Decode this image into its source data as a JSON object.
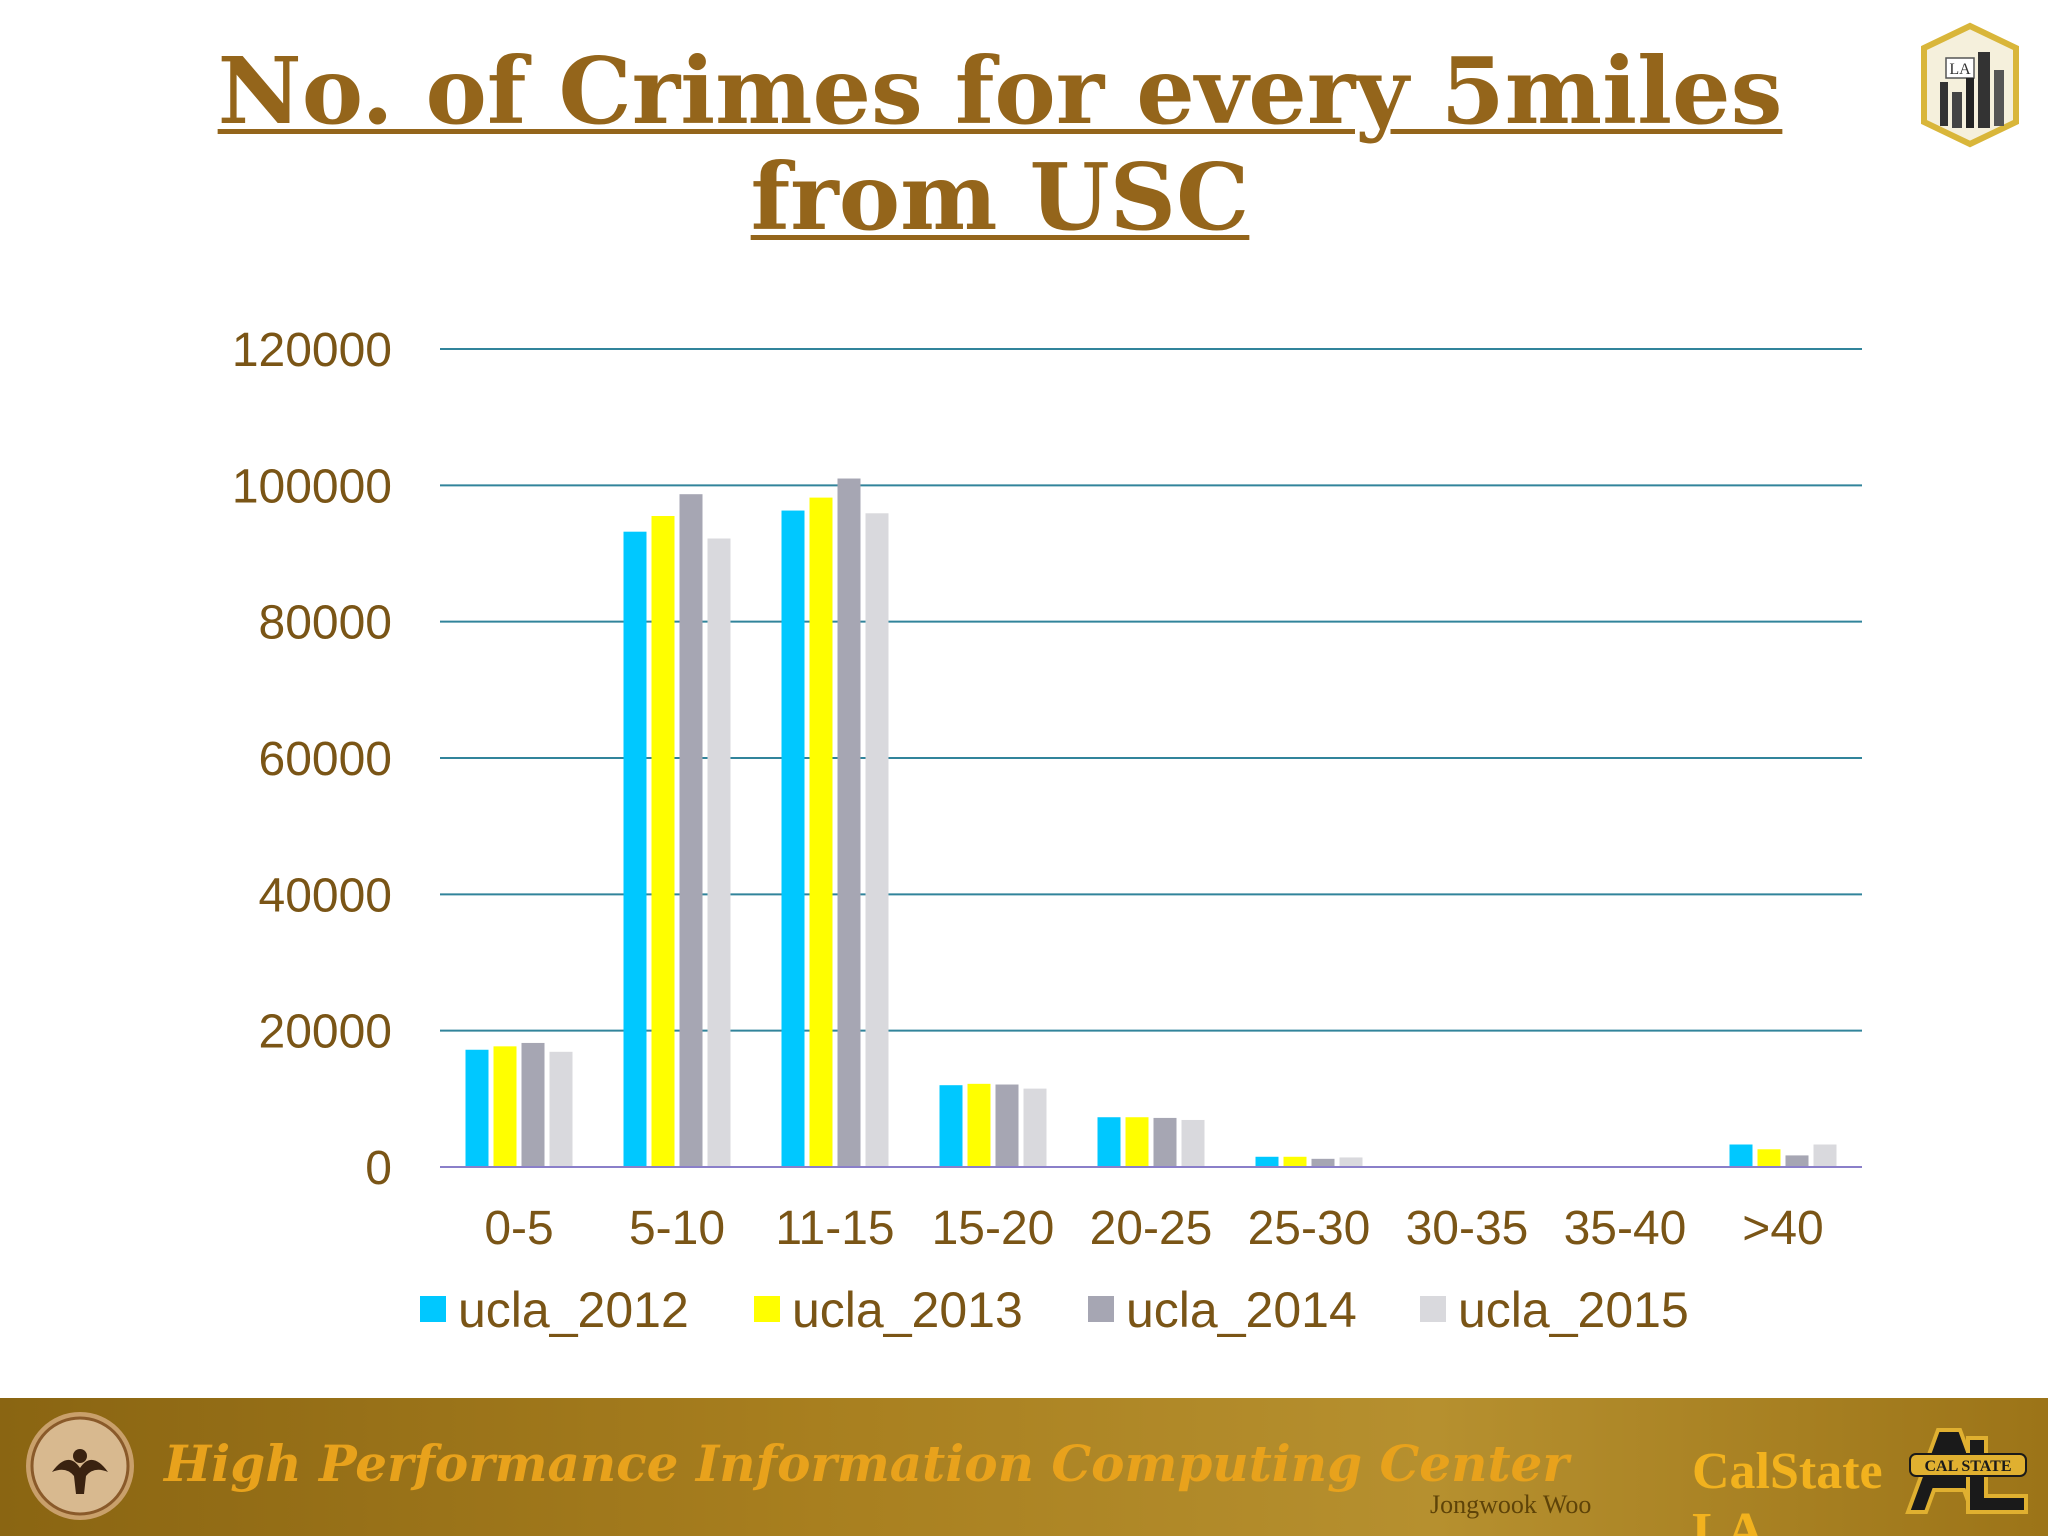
{
  "slide": {
    "title_line1": "No. of Crimes for every 5miles",
    "title_line2": "from USC"
  },
  "logos": {
    "top_right": "LA skyline logo",
    "top_right_text": "LA"
  },
  "footer": {
    "center_text": "High Performance Information Computing Center",
    "author": "Jongwook Woo",
    "brand": "CalStateLA",
    "seal": "phoenix-seal-icon",
    "calstate_logo_text": "CAL STATE"
  },
  "colors": {
    "title": "#94651b",
    "axis_text": "#7a5516",
    "gridline": "#31849b",
    "baseline": "#8a7fc9",
    "series": [
      "#00c8ff",
      "#ffff00",
      "#a6a6b3",
      "#d9d9dd"
    ]
  },
  "chart_data": {
    "type": "bar",
    "title": "No. of Crimes for every 5miles from USC",
    "xlabel": "",
    "ylabel": "",
    "categories": [
      "0-5",
      "5-10",
      "11-15",
      "15-20",
      "20-25",
      "25-30",
      "30-35",
      "35-40",
      ">40"
    ],
    "ylim": [
      0,
      120000
    ],
    "yticks": [
      "0",
      "20000",
      "40000",
      "60000",
      "80000",
      "100000",
      "120000"
    ],
    "grid": true,
    "legend": "bottom",
    "series": [
      {
        "name": "ucla_2012",
        "values": [
          17200,
          93200,
          96300,
          12000,
          7300,
          1500,
          100,
          100,
          3300
        ]
      },
      {
        "name": "ucla_2013",
        "values": [
          17700,
          95500,
          98200,
          12200,
          7300,
          1500,
          100,
          100,
          2600
        ]
      },
      {
        "name": "ucla_2014",
        "values": [
          18200,
          98700,
          101000,
          12100,
          7200,
          1200,
          100,
          100,
          1700
        ]
      },
      {
        "name": "ucla_2015",
        "values": [
          16900,
          92200,
          95900,
          11500,
          6900,
          1400,
          100,
          100,
          3300
        ]
      }
    ]
  }
}
